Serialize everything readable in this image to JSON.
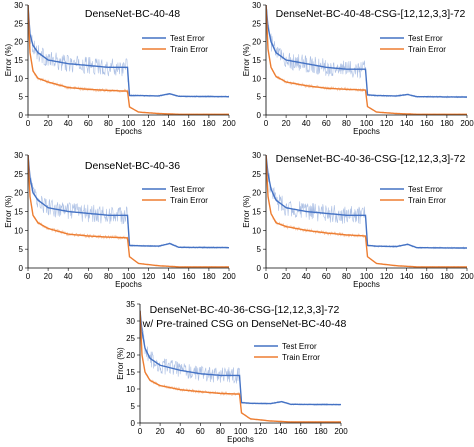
{
  "colors": {
    "test": "#4472c4",
    "train": "#ed7d31"
  },
  "chart_data": [
    {
      "type": "line",
      "title_lines": [
        "DenseNet-BC-40-48"
      ],
      "xlabel": "Epochs",
      "ylabel": "Error (%)",
      "xlim": [
        0,
        200
      ],
      "ylim": [
        0,
        30
      ],
      "xticks": [
        "0",
        "20",
        "40",
        "60",
        "80",
        "100",
        "120",
        "140",
        "160",
        "180",
        "200"
      ],
      "yticks": [
        "0",
        "5",
        "10",
        "15",
        "20",
        "25",
        "30"
      ],
      "legend": {
        "position": "top-right",
        "entries": [
          "Test Error",
          "Train Error"
        ]
      },
      "series": [
        {
          "name": "Test Error",
          "color": "test",
          "x": [
            0,
            2,
            5,
            10,
            20,
            40,
            60,
            80,
            99,
            101,
            110,
            130,
            141,
            150,
            200
          ],
          "y": [
            30,
            22,
            19,
            17,
            15,
            14,
            13.5,
            13,
            13,
            5.3,
            5.3,
            5.2,
            5.8,
            5.1,
            5.0
          ]
        },
        {
          "name": "Train Error",
          "color": "train",
          "x": [
            0,
            2,
            5,
            10,
            20,
            40,
            60,
            80,
            99,
            101,
            110,
            130,
            150,
            200
          ],
          "y": [
            30,
            17,
            12,
            10,
            9,
            7.5,
            7,
            6.7,
            6.5,
            2.2,
            0.8,
            0.4,
            0.2,
            0.2
          ]
        }
      ]
    },
    {
      "type": "line",
      "title_lines": [
        "DenseNet-BC-40-48-CSG-[12,12,3,3]-72"
      ],
      "xlabel": "Epochs",
      "ylabel": "Error (%)",
      "xlim": [
        0,
        200
      ],
      "ylim": [
        0,
        30
      ],
      "xticks": [
        "0",
        "20",
        "40",
        "60",
        "80",
        "100",
        "120",
        "140",
        "160",
        "180",
        "200"
      ],
      "yticks": [
        "0",
        "5",
        "10",
        "15",
        "20",
        "25",
        "30"
      ],
      "legend": {
        "position": "top-right",
        "entries": [
          "Test Error",
          "Train Error"
        ]
      },
      "series": [
        {
          "name": "Test Error",
          "color": "test",
          "x": [
            0,
            2,
            5,
            10,
            20,
            40,
            60,
            80,
            99,
            101,
            110,
            130,
            141,
            150,
            200
          ],
          "y": [
            30,
            24,
            20,
            17,
            15,
            14,
            13,
            12.5,
            12.5,
            5.5,
            5.3,
            5.2,
            5.6,
            5.0,
            4.9
          ]
        },
        {
          "name": "Train Error",
          "color": "train",
          "x": [
            0,
            2,
            5,
            10,
            20,
            40,
            60,
            80,
            99,
            101,
            110,
            130,
            150,
            200
          ],
          "y": [
            30,
            18,
            13,
            10.5,
            9,
            8,
            7.3,
            7,
            6.8,
            2.3,
            0.8,
            0.4,
            0.2,
            0.2
          ]
        }
      ]
    },
    {
      "type": "line",
      "title_lines": [
        "DenseNet-BC-40-36"
      ],
      "xlabel": "Epochs",
      "ylabel": "Error (%)",
      "xlim": [
        0,
        200
      ],
      "ylim": [
        0,
        30
      ],
      "xticks": [
        "0",
        "20",
        "40",
        "60",
        "80",
        "100",
        "120",
        "140",
        "160",
        "180",
        "200"
      ],
      "yticks": [
        "0",
        "5",
        "10",
        "15",
        "20",
        "25",
        "30"
      ],
      "legend": {
        "position": "top-right",
        "entries": [
          "Test Error",
          "Train Error"
        ]
      },
      "series": [
        {
          "name": "Test Error",
          "color": "test",
          "x": [
            0,
            2,
            5,
            10,
            20,
            40,
            60,
            80,
            99,
            101,
            110,
            130,
            141,
            150,
            200
          ],
          "y": [
            30,
            24,
            20,
            18,
            16,
            15,
            14.5,
            14,
            14,
            6.0,
            5.9,
            5.8,
            6.5,
            5.5,
            5.4
          ]
        },
        {
          "name": "Train Error",
          "color": "train",
          "x": [
            0,
            2,
            5,
            10,
            20,
            40,
            60,
            80,
            99,
            101,
            110,
            130,
            150,
            200
          ],
          "y": [
            30,
            19,
            14,
            12,
            10.5,
            9,
            8.5,
            8.2,
            8,
            3.0,
            1.2,
            0.6,
            0.3,
            0.3
          ]
        }
      ]
    },
    {
      "type": "line",
      "title_lines": [
        "DenseNet-BC-40-36-CSG-[12,12,3,3]-72"
      ],
      "xlabel": "Epochs",
      "ylabel": "Error (%)",
      "xlim": [
        0,
        200
      ],
      "ylim": [
        0,
        30
      ],
      "xticks": [
        "0",
        "20",
        "40",
        "60",
        "80",
        "100",
        "120",
        "140",
        "160",
        "180",
        "200"
      ],
      "yticks": [
        "0",
        "5",
        "10",
        "15",
        "20",
        "25",
        "30"
      ],
      "legend": {
        "position": "top-right",
        "entries": [
          "Test Error",
          "Train Error"
        ]
      },
      "series": [
        {
          "name": "Test Error",
          "color": "test",
          "x": [
            0,
            2,
            5,
            10,
            20,
            40,
            60,
            80,
            99,
            101,
            110,
            130,
            141,
            150,
            200
          ],
          "y": [
            30,
            25,
            21,
            18,
            16,
            15,
            14.5,
            14,
            14,
            6.0,
            5.8,
            5.7,
            6.3,
            5.4,
            5.3
          ]
        },
        {
          "name": "Train Error",
          "color": "train",
          "x": [
            0,
            2,
            5,
            10,
            20,
            40,
            60,
            80,
            99,
            101,
            110,
            130,
            150,
            200
          ],
          "y": [
            30,
            19,
            14.5,
            12,
            11,
            10,
            9.3,
            8.8,
            8.5,
            3.0,
            1.2,
            0.6,
            0.3,
            0.3
          ]
        }
      ]
    },
    {
      "type": "line",
      "title_lines": [
        "DenseNet-BC-40-36-CSG-[12,12,3,3]-72",
        "w/ Pre-trained CSG on DenseNet-BC-40-48"
      ],
      "xlabel": "Epochs",
      "ylabel": "Error (%)",
      "xlim": [
        0,
        200
      ],
      "ylim": [
        0,
        35
      ],
      "xticks": [
        "0",
        "20",
        "40",
        "60",
        "80",
        "100",
        "120",
        "140",
        "160",
        "180",
        "200"
      ],
      "yticks": [
        "0",
        "5",
        "10",
        "15",
        "20",
        "25",
        "30",
        "35"
      ],
      "legend": {
        "position": "top-right",
        "entries": [
          "Test Error",
          "Train Error"
        ]
      },
      "series": [
        {
          "name": "Test Error",
          "color": "test",
          "x": [
            0,
            2,
            5,
            10,
            20,
            40,
            60,
            80,
            99,
            101,
            110,
            130,
            141,
            150,
            200
          ],
          "y": [
            33,
            27,
            22,
            19,
            17,
            15.5,
            14.5,
            14,
            14,
            6.0,
            5.8,
            5.7,
            6.3,
            5.5,
            5.4
          ]
        },
        {
          "name": "Train Error",
          "color": "train",
          "x": [
            0,
            2,
            5,
            10,
            20,
            40,
            60,
            80,
            99,
            101,
            110,
            130,
            150,
            200
          ],
          "y": [
            33,
            20,
            15,
            12.5,
            11,
            9.8,
            9.2,
            8.7,
            8.5,
            3.0,
            1.2,
            0.6,
            0.3,
            0.3
          ]
        }
      ]
    }
  ]
}
